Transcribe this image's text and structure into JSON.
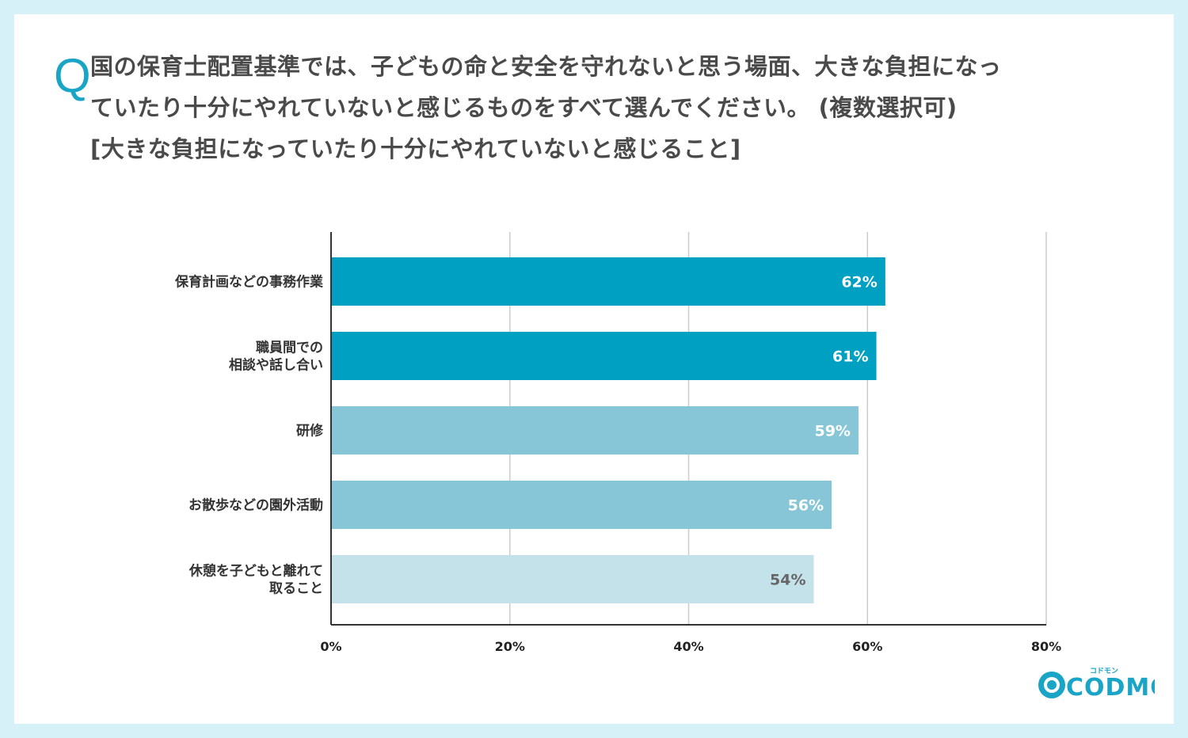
{
  "header": {
    "q_mark": "Q",
    "question_lines": [
      "国の保育士配置基準では、子どもの命と安全を守れないと思う場面、大きな負担になっ",
      "ていたり十分にやれていないと感じるものをすべて選んでください。 (複数選択可)",
      "[大きな負担になっていたり十分にやれていないと感じること]"
    ]
  },
  "logo": {
    "text": "CODMON",
    "small_text": "コドモン",
    "color": "#1aa5c7",
    "icon": "codmon-face-icon"
  },
  "colors": {
    "background": "#d6f1f8",
    "bar_dark": "#00a0c2",
    "bar_medium": "#86c6d7",
    "bar_light": "#c4e2ea",
    "grid": "#cccccc",
    "axis": "#333333"
  },
  "chart_data": {
    "type": "bar",
    "orientation": "horizontal",
    "categories": [
      [
        "保育計画などの事務作業"
      ],
      [
        "職員間での",
        "相談や話し合い"
      ],
      [
        "研修"
      ],
      [
        "お散歩などの園外活動"
      ],
      [
        "休憩を子どもと離れて",
        "取ること"
      ]
    ],
    "values": [
      62,
      61,
      59,
      56,
      54
    ],
    "value_labels": [
      "62%",
      "61%",
      "59%",
      "56%",
      "54%"
    ],
    "bar_colors": [
      "#00a0c2",
      "#00a0c2",
      "#86c6d7",
      "#86c6d7",
      "#c4e2ea"
    ],
    "label_colors": [
      "#ffffff",
      "#ffffff",
      "#ffffff",
      "#ffffff",
      "#666666"
    ],
    "xlim": [
      0,
      80
    ],
    "xticks": [
      0,
      20,
      40,
      60,
      80
    ],
    "xtick_labels": [
      "0%",
      "20%",
      "40%",
      "60%",
      "80%"
    ],
    "grid": true,
    "legend": "none"
  }
}
